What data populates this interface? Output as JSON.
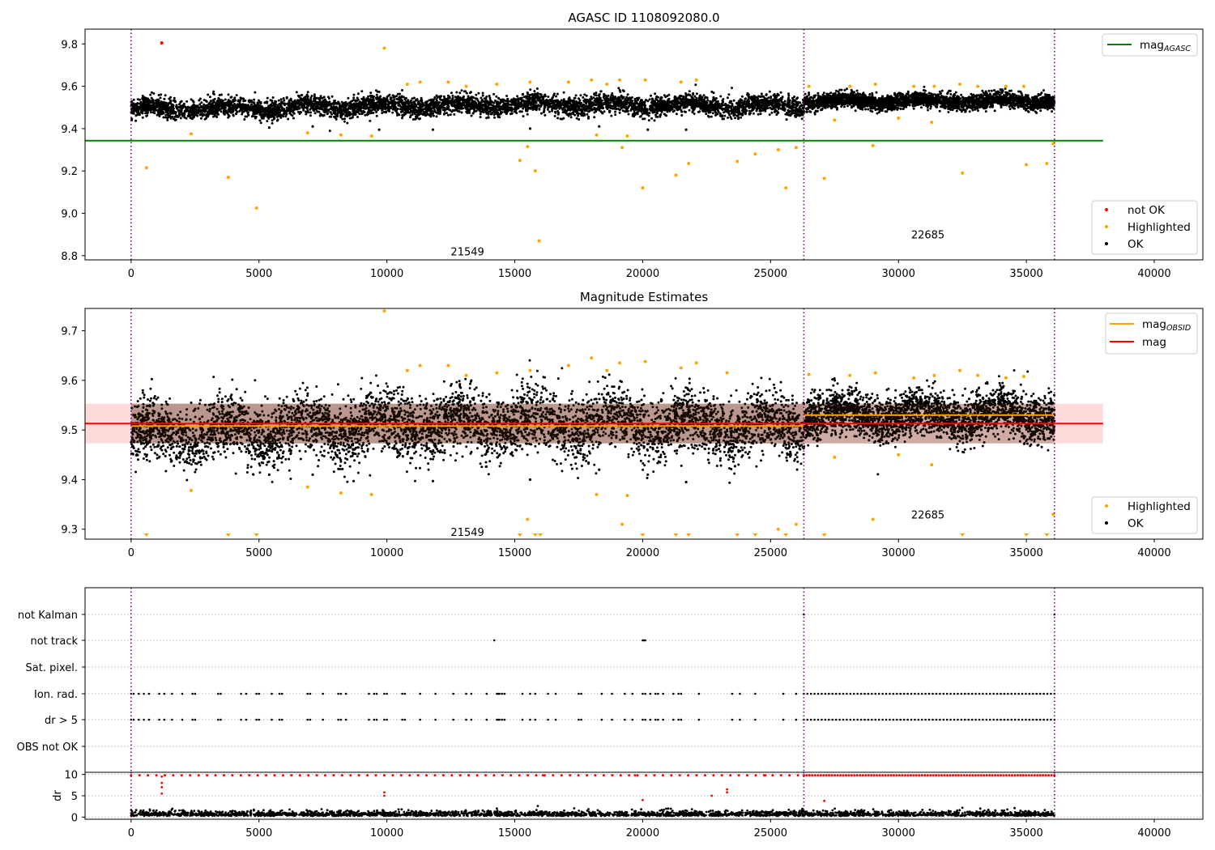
{
  "chart_data": [
    {
      "type": "scatter",
      "title": "AGASC ID 1108092080.0",
      "xlim": [
        -1800,
        41900
      ],
      "ylim": [
        8.78,
        9.87
      ],
      "xticks": [
        0,
        5000,
        10000,
        15000,
        20000,
        25000,
        30000,
        35000,
        40000
      ],
      "yticks": [
        8.8,
        9.0,
        9.2,
        9.4,
        9.6,
        9.8
      ],
      "ytick_labels": [
        "8.8",
        "9.0",
        "9.2",
        "9.4",
        "9.6",
        "9.8"
      ],
      "vlines": [
        0,
        26300,
        36100
      ],
      "hline": {
        "name": "mag_AGASC",
        "y": 9.343,
        "x": [
          -1800,
          38000
        ],
        "color": "#008000"
      },
      "legend_top": {
        "label": "mag",
        "sub": "AGASC",
        "color": "#008000"
      },
      "legend_bottom": [
        {
          "label": "not OK",
          "color": "#ff0000"
        },
        {
          "label": "Highlighted",
          "color": "#ffa500"
        },
        {
          "label": "OK",
          "color": "#000000"
        }
      ],
      "obsid_labels": [
        {
          "text": "21549",
          "x": 13150,
          "y": 8.82
        },
        {
          "text": "22685",
          "x": 31150,
          "y": 8.9
        }
      ],
      "ok_bands": [
        {
          "x": [
            0,
            26300
          ],
          "center": [
            9.49,
            9.505,
            9.515,
            9.505
          ],
          "spread": 0.05
        },
        {
          "x": [
            26300,
            36100
          ],
          "center": [
            9.53,
            9.53
          ],
          "spread": 0.04
        }
      ],
      "not_ok_points": [
        [
          1200,
          9.805
        ]
      ],
      "highlight_points": [
        [
          600,
          9.215
        ],
        [
          2350,
          9.375
        ],
        [
          3800,
          9.17
        ],
        [
          4900,
          9.025
        ],
        [
          6900,
          9.38
        ],
        [
          8200,
          9.37
        ],
        [
          9400,
          9.365
        ],
        [
          9900,
          9.78
        ],
        [
          10800,
          9.61
        ],
        [
          11300,
          9.62
        ],
        [
          12400,
          9.62
        ],
        [
          13100,
          9.6
        ],
        [
          14300,
          9.61
        ],
        [
          15200,
          9.25
        ],
        [
          15500,
          9.315
        ],
        [
          15600,
          9.62
        ],
        [
          15800,
          9.2
        ],
        [
          15950,
          8.87
        ],
        [
          17100,
          9.62
        ],
        [
          18000,
          9.63
        ],
        [
          18200,
          9.37
        ],
        [
          18600,
          9.61
        ],
        [
          19100,
          9.63
        ],
        [
          19200,
          9.31
        ],
        [
          19400,
          9.365
        ],
        [
          20000,
          9.12
        ],
        [
          20100,
          9.63
        ],
        [
          21300,
          9.18
        ],
        [
          21500,
          9.62
        ],
        [
          21800,
          9.235
        ],
        [
          22100,
          9.63
        ],
        [
          23700,
          9.245
        ],
        [
          24400,
          9.28
        ],
        [
          25300,
          9.3
        ],
        [
          25600,
          9.12
        ],
        [
          26000,
          9.31
        ],
        [
          26500,
          9.6
        ],
        [
          27100,
          9.165
        ],
        [
          27500,
          9.44
        ],
        [
          28100,
          9.6
        ],
        [
          29000,
          9.32
        ],
        [
          29100,
          9.61
        ],
        [
          30000,
          9.45
        ],
        [
          30600,
          9.6
        ],
        [
          31300,
          9.43
        ],
        [
          31400,
          9.6
        ],
        [
          32500,
          9.19
        ],
        [
          32400,
          9.61
        ],
        [
          33100,
          9.6
        ],
        [
          34200,
          9.6
        ],
        [
          34900,
          9.6
        ],
        [
          35000,
          9.23
        ],
        [
          35800,
          9.235
        ],
        [
          36050,
          9.33
        ]
      ],
      "ok_outliers": [
        [
          5400,
          9.405
        ],
        [
          7100,
          9.41
        ],
        [
          9700,
          9.395
        ],
        [
          11800,
          9.395
        ],
        [
          15600,
          9.4
        ],
        [
          18300,
          9.41
        ],
        [
          20200,
          9.395
        ],
        [
          21700,
          9.395
        ]
      ]
    },
    {
      "type": "scatter",
      "title": "Magnitude Estimates",
      "xlim": [
        -1800,
        41900
      ],
      "ylim": [
        9.28,
        9.745
      ],
      "xticks": [
        0,
        5000,
        10000,
        15000,
        20000,
        25000,
        30000,
        35000,
        40000
      ],
      "yticks": [
        9.3,
        9.4,
        9.5,
        9.6,
        9.7
      ],
      "ytick_labels": [
        "9.3",
        "9.4",
        "9.5",
        "9.6",
        "9.7"
      ],
      "vlines": [
        0,
        26300,
        36100
      ],
      "mag_band": {
        "y": 9.513,
        "lo": 9.473,
        "hi": 9.553,
        "x": [
          -1800,
          38000
        ],
        "color": "#ff0000",
        "fill": "#ffd6d6"
      },
      "mag_obsid": [
        {
          "x": [
            0,
            26300
          ],
          "y": 9.508
        },
        {
          "x": [
            26300,
            36100
          ],
          "y": 9.53
        }
      ],
      "legend_top": [
        {
          "label": "mag",
          "sub": "OBSID",
          "color": "#ffa500"
        },
        {
          "label": "mag",
          "sub": "",
          "color": "#ff0000"
        }
      ],
      "legend_bottom": [
        {
          "label": "Highlighted",
          "color": "#ffa500"
        },
        {
          "label": "OK",
          "color": "#000000"
        }
      ],
      "obsid_labels": [
        {
          "text": "21549",
          "x": 13150,
          "y": 9.295
        },
        {
          "text": "22685",
          "x": 31150,
          "y": 9.33
        }
      ],
      "ok_bands": [
        {
          "x": [
            0,
            26300
          ],
          "center": [
            9.49,
            9.505,
            9.515,
            9.505
          ],
          "spread": 0.07
        },
        {
          "x": [
            26300,
            36100
          ],
          "center": [
            9.53,
            9.53
          ],
          "spread": 0.05
        }
      ],
      "highlight_points": [
        [
          2350,
          9.378
        ],
        [
          6900,
          9.385
        ],
        [
          8200,
          9.373
        ],
        [
          9400,
          9.37
        ],
        [
          9900,
          9.74
        ],
        [
          10800,
          9.62
        ],
        [
          11300,
          9.63
        ],
        [
          12400,
          9.63
        ],
        [
          13100,
          9.61
        ],
        [
          14300,
          9.615
        ],
        [
          15500,
          9.32
        ],
        [
          15600,
          9.62
        ],
        [
          17100,
          9.63
        ],
        [
          18000,
          9.645
        ],
        [
          18200,
          9.37
        ],
        [
          18600,
          9.62
        ],
        [
          19100,
          9.635
        ],
        [
          19200,
          9.31
        ],
        [
          19400,
          9.368
        ],
        [
          20100,
          9.638
        ],
        [
          21500,
          9.625
        ],
        [
          22100,
          9.635
        ],
        [
          23300,
          9.615
        ],
        [
          25300,
          9.3
        ],
        [
          26000,
          9.31
        ],
        [
          26500,
          9.612
        ],
        [
          27500,
          9.445
        ],
        [
          28100,
          9.61
        ],
        [
          29000,
          9.32
        ],
        [
          29100,
          9.615
        ],
        [
          30000,
          9.45
        ],
        [
          30600,
          9.605
        ],
        [
          31300,
          9.43
        ],
        [
          31400,
          9.61
        ],
        [
          32400,
          9.62
        ],
        [
          33100,
          9.61
        ],
        [
          34200,
          9.605
        ],
        [
          34900,
          9.608
        ],
        [
          36050,
          9.33
        ]
      ],
      "low_markers": [
        600,
        3800,
        4900,
        15200,
        15800,
        16000,
        20000,
        21300,
        21800,
        23700,
        24400,
        25600,
        27100,
        32500,
        35000,
        35800
      ],
      "ok_outliers": [
        [
          5400,
          9.41
        ],
        [
          7100,
          9.41
        ],
        [
          8700,
          9.397
        ],
        [
          11800,
          9.397
        ],
        [
          15600,
          9.4
        ],
        [
          18300,
          9.42
        ],
        [
          20200,
          9.41
        ],
        [
          21700,
          9.395
        ]
      ]
    },
    {
      "type": "scatter",
      "title": "",
      "xlim": [
        -1800,
        41900
      ],
      "categories": [
        "not Kalman",
        "not track",
        "Sat. pixel.",
        "Ion. rad.",
        "dr > 5",
        "OBS not OK"
      ],
      "vlines": [
        0,
        26300,
        36100
      ],
      "rows": {
        "not_kalman": [
          26300,
          36100
        ],
        "not_track": [
          14200,
          20000,
          20050,
          20100
        ],
        "sat_pixel": [],
        "ion_rad": [
          0,
          100,
          300,
          500,
          700,
          1100,
          1300,
          1600,
          2000,
          2400,
          2500,
          3400,
          3500,
          4300,
          4500,
          4900,
          5000,
          5500,
          5800,
          5900,
          6900,
          7000,
          7500,
          8100,
          8200,
          8400,
          9300,
          9500,
          9600,
          9900,
          10000,
          10600,
          10700,
          11300,
          11900,
          12600,
          13100,
          13300,
          13900,
          14300,
          14350,
          14400,
          14500,
          14600,
          15300,
          15600,
          15800,
          16300,
          16600,
          17500,
          17600,
          18400,
          18800,
          19300,
          19600,
          20000,
          20100,
          20300,
          20500,
          20600,
          20800,
          21200,
          21400,
          21500,
          22200,
          23500,
          23800,
          24400,
          25500,
          26000
        ],
        "dr_gt_5": [
          0,
          100,
          300,
          500,
          700,
          1100,
          1300,
          1600,
          2000,
          2400,
          2500,
          3400,
          3500,
          4300,
          4500,
          4900,
          5000,
          5500,
          5800,
          5900,
          6900,
          7000,
          7500,
          8100,
          8200,
          8400,
          9300,
          9500,
          9600,
          9900,
          10000,
          10600,
          10700,
          11300,
          11900,
          12600,
          13100,
          13300,
          13900,
          14300,
          14350,
          14400,
          14500,
          14600,
          15300,
          15600,
          15800,
          16300,
          16600,
          17500,
          17600,
          18400,
          18800,
          19300,
          19600,
          20000,
          20100,
          20300,
          20500,
          20600,
          20800,
          21200,
          21400,
          21500,
          22200,
          23500,
          23800,
          24400,
          25500,
          26000
        ],
        "obs_not_ok": []
      }
    },
    {
      "type": "scatter",
      "title": "",
      "ylabel": "dr",
      "xlim": [
        -1800,
        41900
      ],
      "ylim": [
        -0.5,
        10.5
      ],
      "xticks": [
        0,
        5000,
        10000,
        15000,
        20000,
        25000,
        30000,
        35000,
        40000
      ],
      "yticks": [
        0,
        5,
        10
      ],
      "ytick_labels": [
        "0",
        "5",
        "10"
      ],
      "vlines": [
        0,
        26300,
        36100
      ],
      "red_points": [
        [
          1200,
          9.5
        ],
        [
          1200,
          8.0
        ],
        [
          1200,
          7.0
        ],
        [
          1200,
          5.5
        ],
        [
          9900,
          5.8
        ],
        [
          9900,
          5.0
        ],
        [
          20000,
          4.0
        ],
        [
          22700,
          5.0
        ],
        [
          23300,
          6.5
        ],
        [
          23300,
          5.8
        ],
        [
          27100,
          3.8
        ],
        [
          13200,
          9.8
        ],
        [
          16100,
          9.8
        ],
        [
          19700,
          9.8
        ],
        [
          24800,
          9.8
        ]
      ],
      "black_outliers": [
        [
          15900,
          2.6
        ],
        [
          14300,
          2.0
        ],
        [
          21000,
          2.0
        ],
        [
          32500,
          2.2
        ],
        [
          33200,
          2.0
        ]
      ]
    }
  ]
}
